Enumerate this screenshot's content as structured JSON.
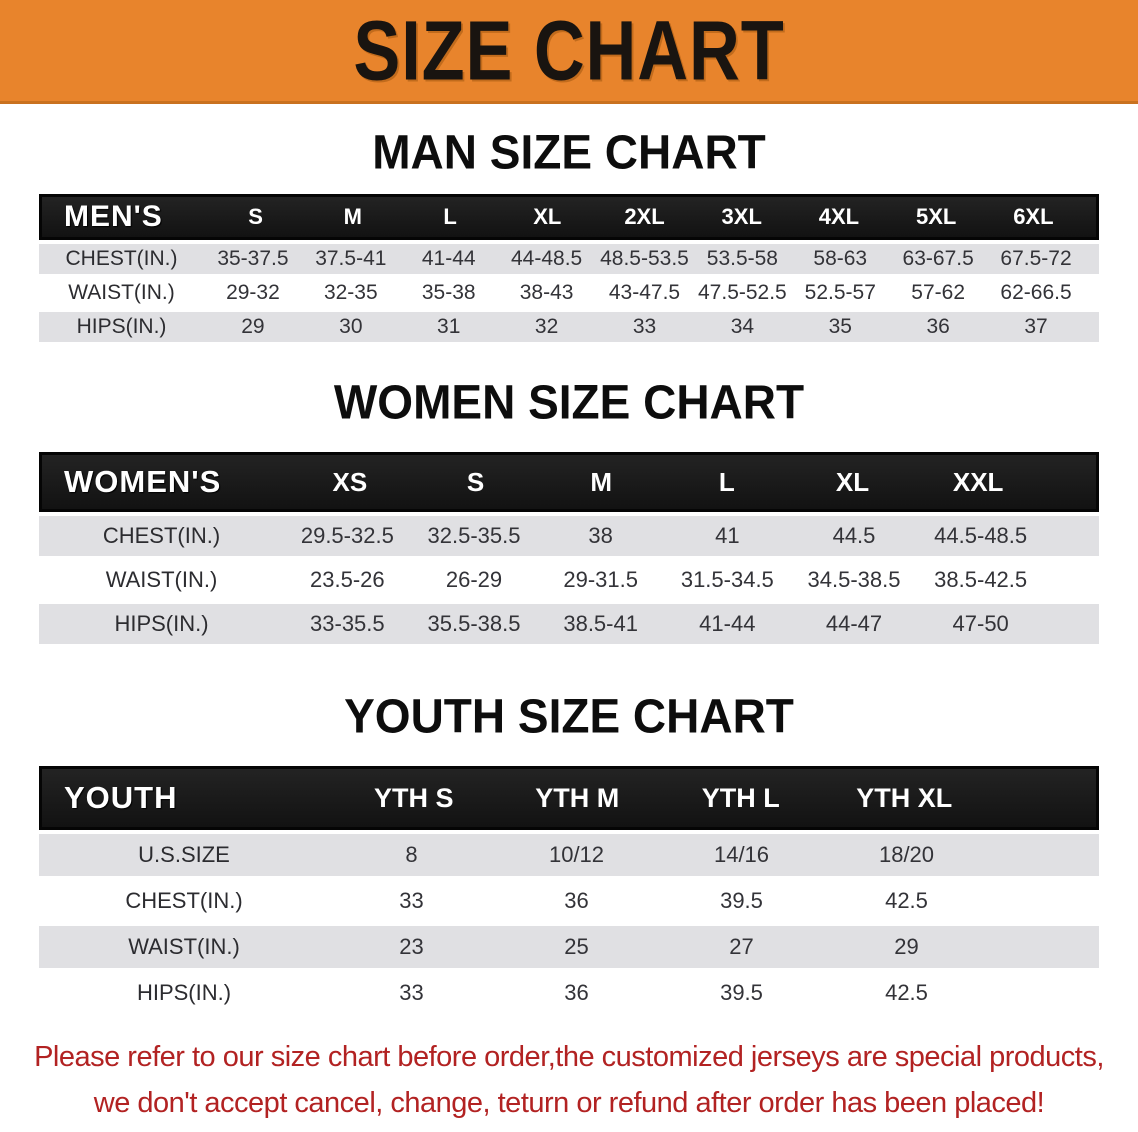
{
  "banner": {
    "title": "SIZE CHART",
    "bg_color": "#E8842C"
  },
  "sections": [
    {
      "heading": "MAN SIZE CHART",
      "table": {
        "label": "MEN'S",
        "columns": [
          "S",
          "M",
          "L",
          "XL",
          "2XL",
          "3XL",
          "4XL",
          "5XL",
          "6XL"
        ],
        "rows": [
          {
            "label": "CHEST(IN.)",
            "values": [
              "35-37.5",
              "37.5-41",
              "41-44",
              "44-48.5",
              "48.5-53.5",
              "53.5-58",
              "58-63",
              "63-67.5",
              "67.5-72"
            ]
          },
          {
            "label": "WAIST(IN.)",
            "values": [
              "29-32",
              "32-35",
              "35-38",
              "38-43",
              "43-47.5",
              "47.5-52.5",
              "52.5-57",
              "57-62",
              "62-66.5"
            ]
          },
          {
            "label": "HIPS(IN.)",
            "values": [
              "29",
              "30",
              "31",
              "32",
              "33",
              "34",
              "35",
              "36",
              "37"
            ]
          }
        ]
      }
    },
    {
      "heading": "WOMEN SIZE CHART",
      "table": {
        "label": "WOMEN'S",
        "columns": [
          "XS",
          "S",
          "M",
          "L",
          "XL",
          "XXL"
        ],
        "rows": [
          {
            "label": "CHEST(IN.)",
            "values": [
              "29.5-32.5",
              "32.5-35.5",
              "38",
              "41",
              "44.5",
              "44.5-48.5"
            ]
          },
          {
            "label": "WAIST(IN.)",
            "values": [
              "23.5-26",
              "26-29",
              "29-31.5",
              "31.5-34.5",
              "34.5-38.5",
              "38.5-42.5"
            ]
          },
          {
            "label": "HIPS(IN.)",
            "values": [
              "33-35.5",
              "35.5-38.5",
              "38.5-41",
              "41-44",
              "44-47",
              "47-50"
            ]
          }
        ]
      }
    },
    {
      "heading": "YOUTH SIZE CHART",
      "table": {
        "label": "YOUTH",
        "columns": [
          "YTH S",
          "YTH M",
          "YTH L",
          "YTH XL"
        ],
        "rows": [
          {
            "label": "U.S.SIZE",
            "values": [
              "8",
              "10/12",
              "14/16",
              "18/20"
            ]
          },
          {
            "label": "CHEST(IN.)",
            "values": [
              "33",
              "36",
              "39.5",
              "42.5"
            ]
          },
          {
            "label": "WAIST(IN.)",
            "values": [
              "23",
              "25",
              "27",
              "29"
            ]
          },
          {
            "label": "HIPS(IN.)",
            "values": [
              "33",
              "36",
              "39.5",
              "42.5"
            ]
          }
        ]
      }
    }
  ],
  "disclaimer": {
    "color": "#B22222",
    "lines": [
      "Please refer to our size chart before order,the customized jerseys are special products,",
      "we don't accept cancel, change, teturn or refund after order has been placed!"
    ]
  }
}
